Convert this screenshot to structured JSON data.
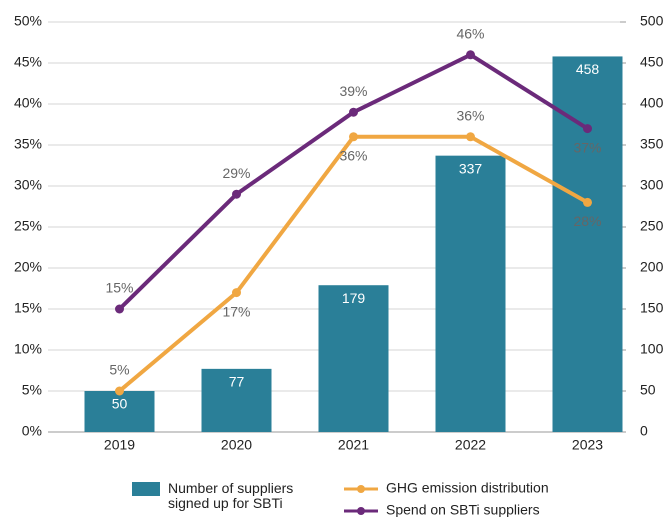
{
  "chart_data": {
    "type": "bar_line",
    "categories": [
      "2019",
      "2020",
      "2021",
      "2022",
      "2023"
    ],
    "series": [
      {
        "name": "Number of suppliers signed up for SBTi",
        "type": "bar",
        "axis": "y2",
        "color": "#2a7f98",
        "values": [
          50,
          77,
          179,
          337,
          458
        ]
      },
      {
        "name": "GHG emission distribution",
        "type": "line",
        "color": "#f0a742",
        "values": [
          5,
          17,
          36,
          36,
          28
        ],
        "value_labels": [
          "5%",
          "17%",
          "36%",
          "36%",
          "28%"
        ]
      },
      {
        "name": "Spend on SBTi suppliers",
        "type": "line",
        "color": "#6b2a7a",
        "values": [
          15,
          29,
          39,
          46,
          37
        ],
        "value_labels": [
          "15%",
          "29%",
          "39%",
          "46%",
          "37%"
        ]
      }
    ],
    "ylim": [
      0,
      50
    ],
    "yticks": [
      {
        "value": 0,
        "label": "0%"
      },
      {
        "value": 5,
        "label": "5%"
      },
      {
        "value": 10,
        "label": "10%"
      },
      {
        "value": 15,
        "label": "15%"
      },
      {
        "value": 20,
        "label": "20%"
      },
      {
        "value": 25,
        "label": "25%"
      },
      {
        "value": 30,
        "label": "30%"
      },
      {
        "value": 35,
        "label": "35%"
      },
      {
        "value": 40,
        "label": "40%"
      },
      {
        "value": 45,
        "label": "45%"
      },
      {
        "value": 50,
        "label": "50%"
      }
    ],
    "y2lim": [
      0,
      500
    ],
    "y2ticks": [
      0,
      50,
      100,
      150,
      200,
      250,
      300,
      350,
      400,
      450,
      500
    ],
    "grid": true
  }
}
